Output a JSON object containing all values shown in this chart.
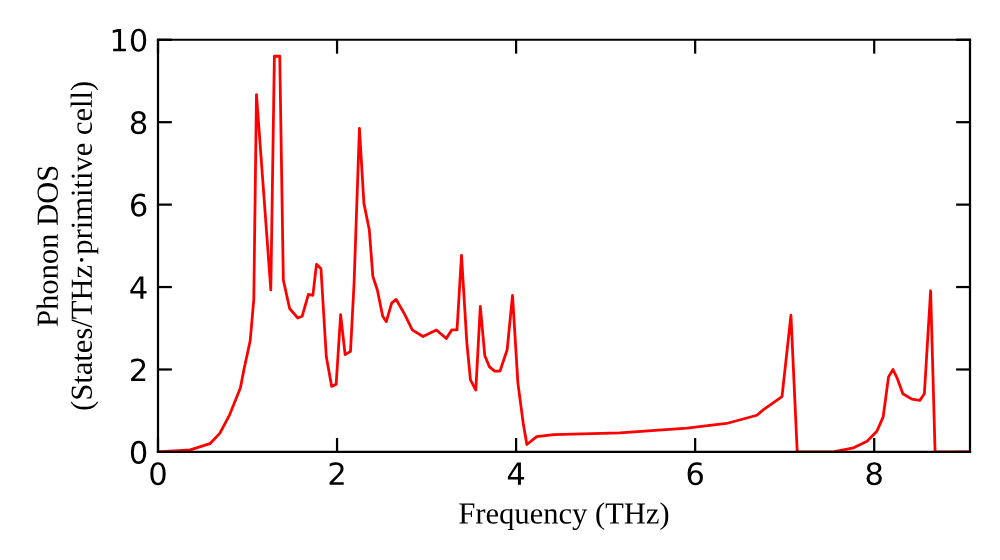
{
  "chart_data": {
    "type": "line",
    "xlabel": "Frequency (THz)",
    "ylabel": "Phonon DOS\n(States/THz·primitive cell)",
    "xlim": [
      0,
      9.07
    ],
    "ylim": [
      0,
      10
    ],
    "xticks": [
      0,
      2,
      4,
      6,
      8
    ],
    "yticks": [
      0,
      2,
      4,
      6,
      8,
      10
    ],
    "grid": false,
    "legend": false,
    "marker": "none",
    "line_style": "solid",
    "series": [
      {
        "color": "#ff0000",
        "x": [
          0,
          0.36,
          0.58,
          0.69,
          0.8,
          0.92,
          0.96,
          1.03,
          1.07,
          1.1,
          1.26,
          1.3,
          1.36,
          1.4,
          1.47,
          1.56,
          1.61,
          1.68,
          1.73,
          1.77,
          1.82,
          1.88,
          1.94,
          1.99,
          2.04,
          2.09,
          2.15,
          2.19,
          2.25,
          2.3,
          2.36,
          2.4,
          2.45,
          2.51,
          2.55,
          2.61,
          2.66,
          2.75,
          2.84,
          2.96,
          3.11,
          3.22,
          3.28,
          3.34,
          3.39,
          3.45,
          3.49,
          3.55,
          3.6,
          3.65,
          3.7,
          3.76,
          3.82,
          3.9,
          3.96,
          4.02,
          4.08,
          4.12,
          4.23,
          4.42,
          5.16,
          5.91,
          6.35,
          6.69,
          6.76,
          6.97,
          7.07,
          7.14,
          7.54,
          7.77,
          7.92,
          8.03,
          8.1,
          8.16,
          8.21,
          8.26,
          8.32,
          8.42,
          8.51,
          8.56,
          8.63,
          8.68,
          9.07
        ],
        "values": [
          0,
          0.05,
          0.2,
          0.45,
          0.9,
          1.55,
          2.0,
          2.7,
          3.7,
          8.67,
          3.93,
          9.6,
          9.6,
          4.17,
          3.48,
          3.25,
          3.29,
          3.82,
          3.8,
          4.55,
          4.45,
          2.31,
          1.59,
          1.64,
          3.33,
          2.36,
          2.44,
          4.09,
          7.85,
          6.03,
          5.39,
          4.26,
          3.93,
          3.29,
          3.16,
          3.61,
          3.7,
          3.36,
          2.96,
          2.8,
          2.96,
          2.75,
          2.96,
          2.96,
          4.77,
          2.64,
          1.75,
          1.5,
          3.53,
          2.34,
          2.07,
          1.96,
          1.96,
          2.48,
          3.8,
          1.67,
          0.69,
          0.18,
          0.37,
          0.42,
          0.46,
          0.58,
          0.69,
          0.89,
          1.02,
          1.34,
          3.32,
          0,
          0,
          0.1,
          0.26,
          0.5,
          0.85,
          1.82,
          2.0,
          1.77,
          1.41,
          1.28,
          1.25,
          1.41,
          3.91,
          0,
          0
        ]
      }
    ]
  }
}
